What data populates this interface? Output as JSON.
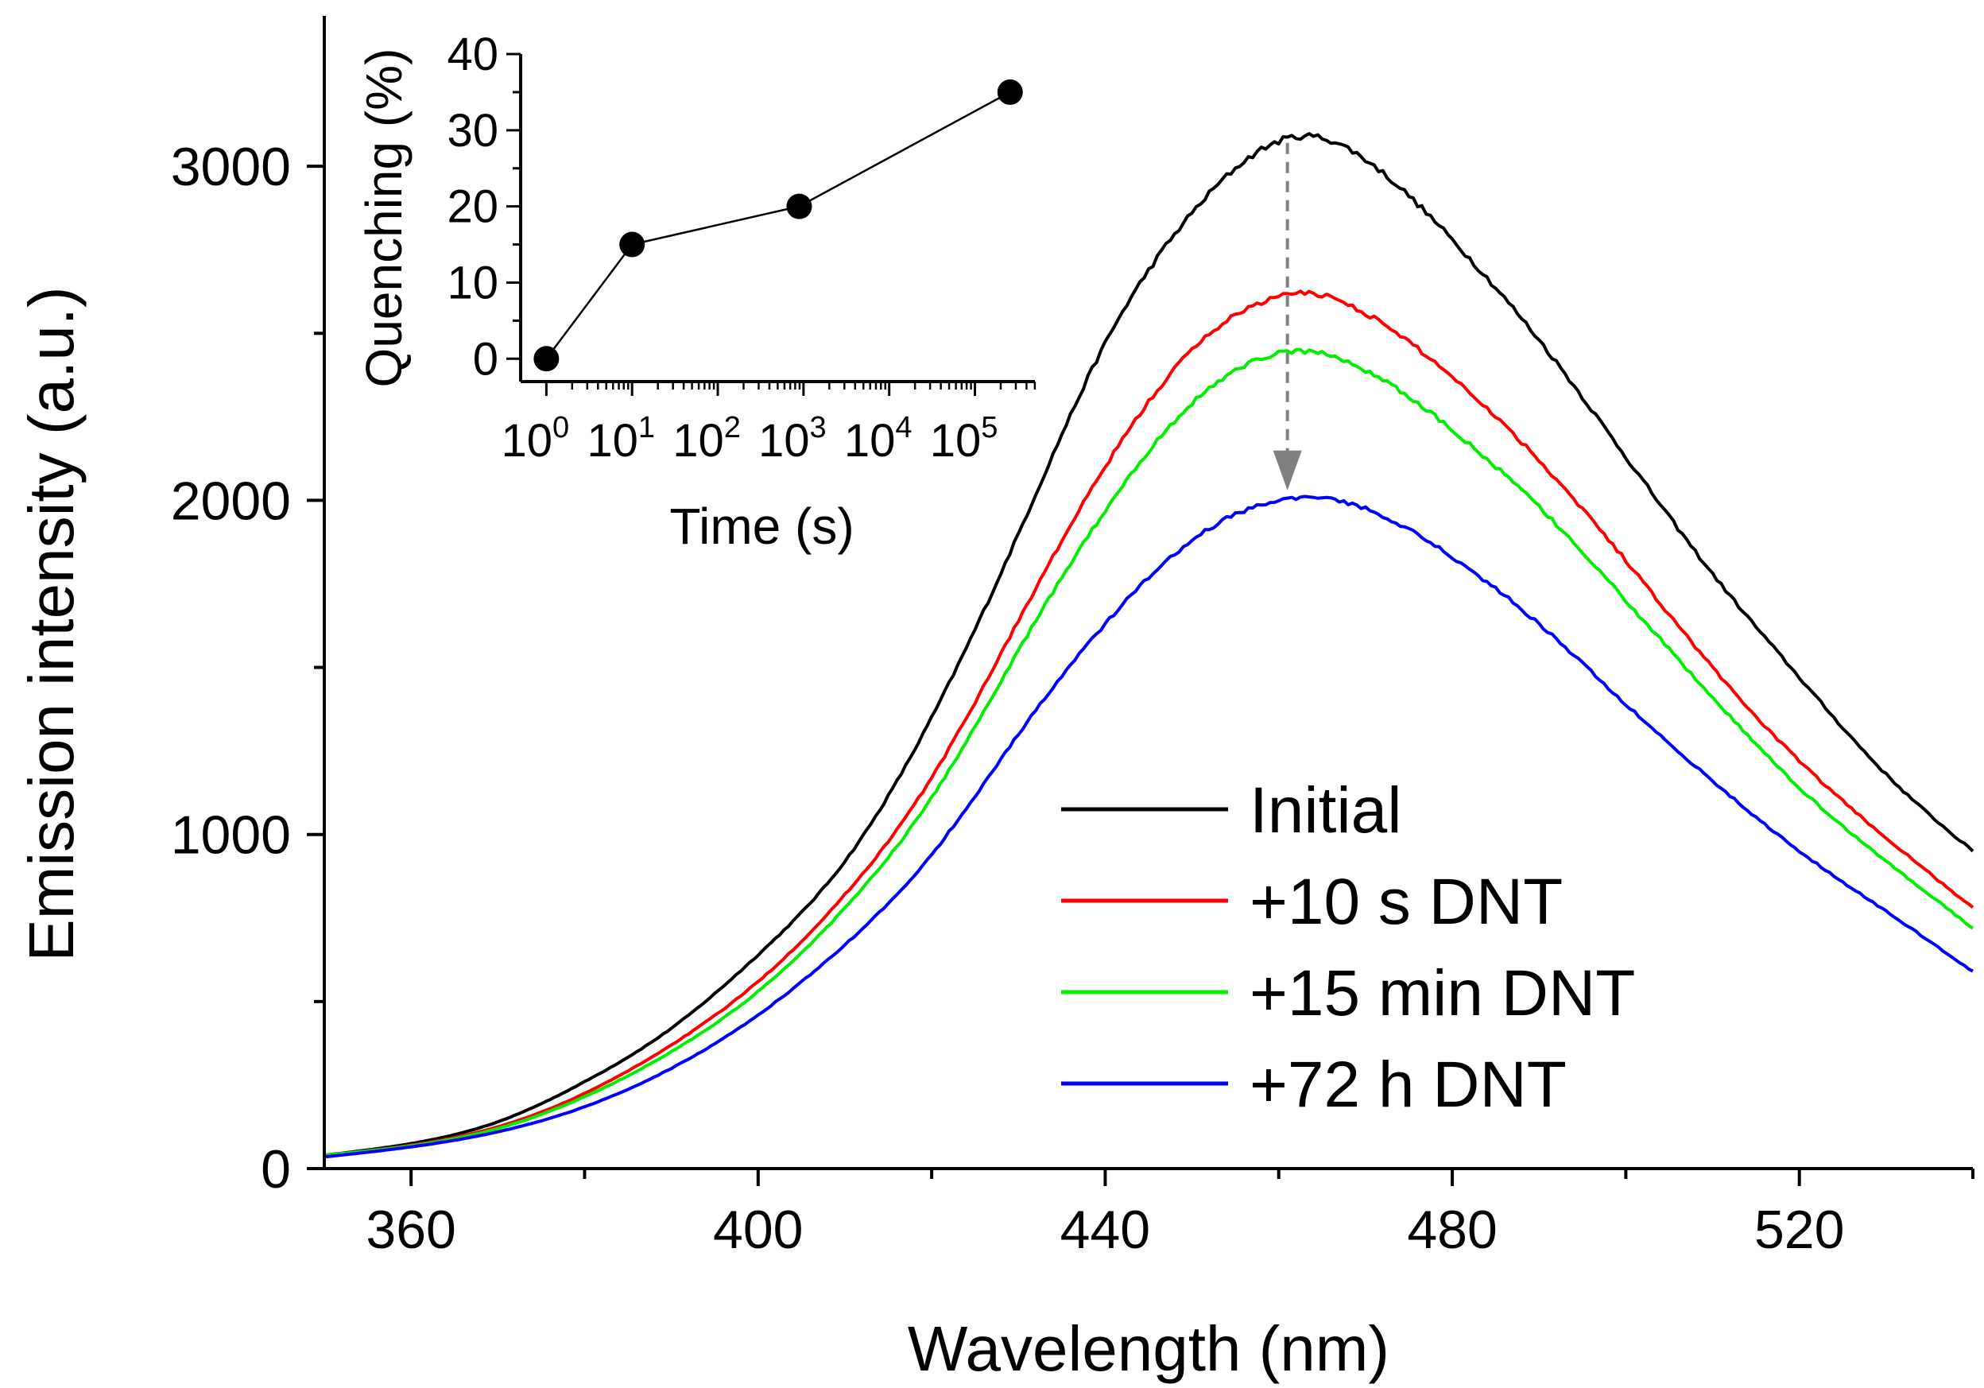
{
  "chart_data": [
    {
      "type": "line",
      "title": "",
      "xlabel": "Wavelength (nm)",
      "ylabel": "Emission intensity (a.u.)",
      "xlim": [
        350,
        540
      ],
      "ylim": [
        0,
        3450
      ],
      "xticks": [
        360,
        400,
        440,
        480,
        520
      ],
      "yticks": [
        0,
        1000,
        2000,
        3000
      ],
      "legend_position": "lower-right",
      "series": [
        {
          "name": "Initial",
          "color": "#000000",
          "peak_x": 462,
          "peak_y": 3085,
          "x": [
            350,
            360,
            370,
            380,
            390,
            400,
            410,
            420,
            430,
            440,
            450,
            460,
            465,
            470,
            480,
            490,
            500,
            510,
            520,
            530,
            540
          ],
          "y": [
            40,
            75,
            140,
            260,
            420,
            640,
            920,
            1350,
            1900,
            2470,
            2860,
            3075,
            3085,
            3020,
            2780,
            2480,
            2130,
            1780,
            1470,
            1180,
            950
          ]
        },
        {
          "name": "+10 s DNT",
          "color": "#ff0000",
          "peak_x": 462,
          "peak_y": 2620,
          "x": [
            350,
            360,
            370,
            380,
            390,
            400,
            410,
            420,
            430,
            440,
            450,
            460,
            465,
            470,
            480,
            490,
            500,
            510,
            520,
            530,
            540
          ],
          "y": [
            40,
            70,
            125,
            225,
            370,
            560,
            820,
            1170,
            1640,
            2100,
            2450,
            2610,
            2615,
            2560,
            2370,
            2120,
            1820,
            1500,
            1220,
            990,
            780
          ]
        },
        {
          "name": "+15 min DNT",
          "color": "#00ee00",
          "peak_x": 462,
          "peak_y": 2445,
          "x": [
            350,
            360,
            370,
            380,
            390,
            400,
            410,
            420,
            430,
            440,
            450,
            460,
            465,
            470,
            480,
            490,
            500,
            510,
            520,
            530,
            540
          ],
          "y": [
            40,
            68,
            120,
            215,
            350,
            530,
            780,
            1110,
            1550,
            1970,
            2290,
            2440,
            2440,
            2390,
            2210,
            1980,
            1700,
            1410,
            1140,
            920,
            720
          ]
        },
        {
          "name": "+72 h DNT",
          "color": "#0000ff",
          "peak_x": 462,
          "peak_y": 2010,
          "x": [
            350,
            360,
            370,
            380,
            390,
            400,
            410,
            420,
            430,
            440,
            450,
            460,
            465,
            470,
            480,
            490,
            500,
            510,
            520,
            530,
            540
          ],
          "y": [
            35,
            65,
            110,
            185,
            300,
            460,
            670,
            940,
            1300,
            1630,
            1880,
            2000,
            2005,
            1975,
            1830,
            1630,
            1390,
            1160,
            950,
            770,
            590
          ]
        }
      ],
      "annotations": [
        {
          "type": "arrow",
          "style": "dashed",
          "color": "#808080",
          "x": 461,
          "from_y": 3070,
          "to_y": 2030
        }
      ]
    },
    {
      "type": "scatter",
      "title": "",
      "xlabel": "Time (s)",
      "ylabel": "Quenching (%)",
      "xscale": "log",
      "xlim_exponent": [
        -0.3,
        5.7
      ],
      "ylim": [
        -3,
        40
      ],
      "xtick_exponents": [
        0,
        1,
        2,
        3,
        4,
        5
      ],
      "xtick_base": "10",
      "yticks": [
        0,
        10,
        20,
        30,
        40
      ],
      "position": "inset-top-left",
      "series": [
        {
          "name": "Quenching",
          "color": "#000000",
          "x_exponent": [
            0,
            1,
            2.95,
            5.41
          ],
          "y": [
            0,
            15,
            20,
            35
          ]
        }
      ]
    }
  ]
}
